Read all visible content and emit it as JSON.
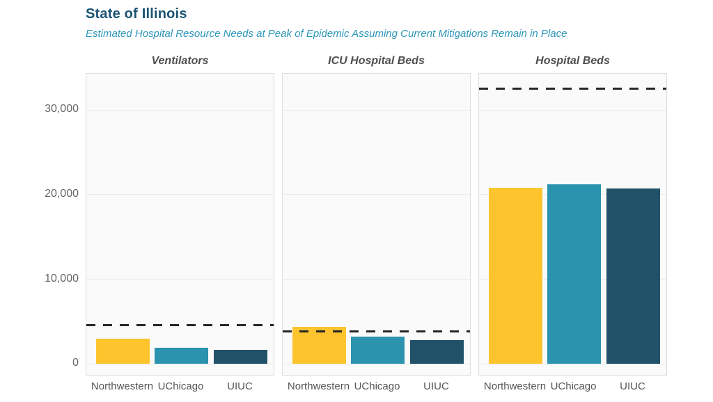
{
  "header": {
    "title": "State of Illinois",
    "subtitle": "Estimated Hospital Resource Needs at Peak of Epidemic Assuming Current Mitigations Remain in Place"
  },
  "colors": {
    "title_text": "#1B5373",
    "subtitle_text": "#2B96B8",
    "panel_title_text": "#4F4F4F",
    "axis_text": "#666666",
    "category_text": "#555555",
    "panel_background": "#FAFAFA",
    "panel_border": "#DEDEDE",
    "gridline": "#EBEBEB",
    "capacity_line": "#262626",
    "series": [
      "#FDC42E",
      "#2B93AE",
      "#215269"
    ]
  },
  "chart_data": {
    "type": "bar",
    "title": "State of Illinois",
    "subtitle": "Estimated Hospital Resource Needs at Peak of Epidemic Assuming Current Mitigations Remain in Place",
    "categories": [
      "Northwestern",
      "UChicago",
      "UIUC"
    ],
    "panels": [
      {
        "label": "Ventilators",
        "values": [
          2900,
          1900,
          1600
        ],
        "capacity_line": 4500
      },
      {
        "label": "ICU Hospital Beds",
        "values": [
          4300,
          3200,
          2800
        ],
        "capacity_line": 3800
      },
      {
        "label": "Hospital Beds",
        "values": [
          20800,
          21200,
          20700
        ],
        "capacity_line": 32500
      }
    ],
    "capacity_line_meaning": "dashed line = estimated resource capacity",
    "yticks": [
      0,
      10000,
      20000,
      30000
    ],
    "ytick_labels": [
      "0",
      "10,000",
      "20,000",
      "30,000"
    ],
    "ylim": [
      -1600,
      34250
    ],
    "grid": true,
    "legend": false,
    "bar_colors_by_category": {
      "Northwestern": "#FDC42E",
      "UChicago": "#2B93AE",
      "UIUC": "#215269"
    }
  }
}
